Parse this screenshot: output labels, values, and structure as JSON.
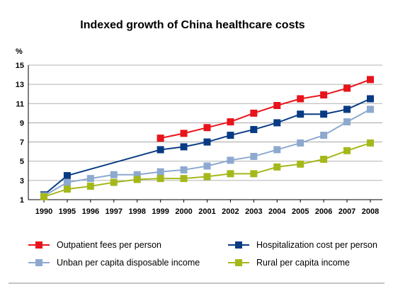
{
  "chart_data": {
    "type": "line",
    "title": "Indexed growth of China healthcare costs",
    "ylabel": "%",
    "xlabel": "",
    "ylim": [
      1,
      15
    ],
    "yticks": [
      1,
      3,
      5,
      7,
      9,
      11,
      13,
      15
    ],
    "categories": [
      "1990",
      "1995",
      "1996",
      "1997",
      "1998",
      "1999",
      "2000",
      "2001",
      "2002",
      "2003",
      "2004",
      "2005",
      "2006",
      "2007",
      "2008"
    ],
    "grid": "horizontal",
    "legend_position": "bottom",
    "series": [
      {
        "name": "Outpatient fees per person",
        "color": "#e8141b",
        "values": [
          null,
          null,
          null,
          null,
          null,
          7.4,
          7.9,
          8.5,
          9.1,
          10.0,
          10.8,
          11.5,
          11.9,
          12.6,
          13.5
        ]
      },
      {
        "name": "Hospitalization cost per person",
        "color": "#083b84",
        "values": [
          1.5,
          3.5,
          null,
          null,
          null,
          6.2,
          6.5,
          7.0,
          7.7,
          8.3,
          9.0,
          9.9,
          9.9,
          10.4,
          11.5
        ]
      },
      {
        "name": "Unban per capita disposable income",
        "color": "#8da9cf",
        "values": [
          1.4,
          2.8,
          3.2,
          3.6,
          3.6,
          3.9,
          4.1,
          4.5,
          5.1,
          5.5,
          6.2,
          6.9,
          7.7,
          9.1,
          10.4
        ]
      },
      {
        "name": "Rural per capita income",
        "color": "#a5b81b",
        "values": [
          1.3,
          2.1,
          2.4,
          2.8,
          3.1,
          3.2,
          3.2,
          3.4,
          3.7,
          3.7,
          4.4,
          4.7,
          5.2,
          6.1,
          6.9
        ]
      }
    ]
  }
}
